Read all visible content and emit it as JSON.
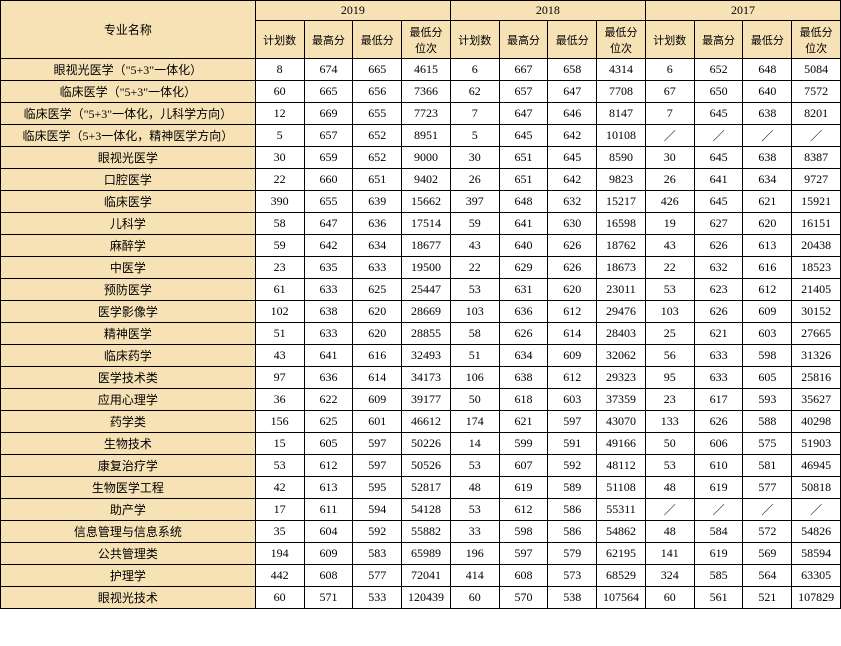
{
  "header": {
    "name_col": "专业名称",
    "years": [
      "2019",
      "2018",
      "2017"
    ],
    "sub": [
      "计划数",
      "最高分",
      "最低分",
      "最低分位次"
    ]
  },
  "rows": [
    {
      "name": "眼视光医学（\"5+3\"一体化）",
      "y2019": [
        "8",
        "674",
        "665",
        "4615"
      ],
      "y2018": [
        "6",
        "667",
        "658",
        "4314"
      ],
      "y2017": [
        "6",
        "652",
        "648",
        "5084"
      ]
    },
    {
      "name": "临床医学（\"5+3\"一体化）",
      "y2019": [
        "60",
        "665",
        "656",
        "7366"
      ],
      "y2018": [
        "62",
        "657",
        "647",
        "7708"
      ],
      "y2017": [
        "67",
        "650",
        "640",
        "7572"
      ]
    },
    {
      "name": "临床医学（\"5+3\"一体化，儿科学方向）",
      "y2019": [
        "12",
        "669",
        "655",
        "7723"
      ],
      "y2018": [
        "7",
        "647",
        "646",
        "8147"
      ],
      "y2017": [
        "7",
        "645",
        "638",
        "8201"
      ]
    },
    {
      "name": "临床医学（5+3一体化，精神医学方向）",
      "y2019": [
        "5",
        "657",
        "652",
        "8951"
      ],
      "y2018": [
        "5",
        "645",
        "642",
        "10108"
      ],
      "y2017": [
        "／",
        "／",
        "／",
        "／"
      ]
    },
    {
      "name": "眼视光医学",
      "y2019": [
        "30",
        "659",
        "652",
        "9000"
      ],
      "y2018": [
        "30",
        "651",
        "645",
        "8590"
      ],
      "y2017": [
        "30",
        "645",
        "638",
        "8387"
      ]
    },
    {
      "name": "口腔医学",
      "y2019": [
        "22",
        "660",
        "651",
        "9402"
      ],
      "y2018": [
        "26",
        "651",
        "642",
        "9823"
      ],
      "y2017": [
        "26",
        "641",
        "634",
        "9727"
      ]
    },
    {
      "name": "临床医学",
      "y2019": [
        "390",
        "655",
        "639",
        "15662"
      ],
      "y2018": [
        "397",
        "648",
        "632",
        "15217"
      ],
      "y2017": [
        "426",
        "645",
        "621",
        "15921"
      ]
    },
    {
      "name": "儿科学",
      "y2019": [
        "58",
        "647",
        "636",
        "17514"
      ],
      "y2018": [
        "59",
        "641",
        "630",
        "16598"
      ],
      "y2017": [
        "19",
        "627",
        "620",
        "16151"
      ]
    },
    {
      "name": "麻醉学",
      "y2019": [
        "59",
        "642",
        "634",
        "18677"
      ],
      "y2018": [
        "43",
        "640",
        "626",
        "18762"
      ],
      "y2017": [
        "43",
        "626",
        "613",
        "20438"
      ]
    },
    {
      "name": "中医学",
      "y2019": [
        "23",
        "635",
        "633",
        "19500"
      ],
      "y2018": [
        "22",
        "629",
        "626",
        "18673"
      ],
      "y2017": [
        "22",
        "632",
        "616",
        "18523"
      ]
    },
    {
      "name": "预防医学",
      "y2019": [
        "61",
        "633",
        "625",
        "25447"
      ],
      "y2018": [
        "53",
        "631",
        "620",
        "23011"
      ],
      "y2017": [
        "53",
        "623",
        "612",
        "21405"
      ]
    },
    {
      "name": "医学影像学",
      "y2019": [
        "102",
        "638",
        "620",
        "28669"
      ],
      "y2018": [
        "103",
        "636",
        "612",
        "29476"
      ],
      "y2017": [
        "103",
        "626",
        "609",
        "30152"
      ]
    },
    {
      "name": "精神医学",
      "y2019": [
        "51",
        "633",
        "620",
        "28855"
      ],
      "y2018": [
        "58",
        "626",
        "614",
        "28403"
      ],
      "y2017": [
        "25",
        "621",
        "603",
        "27665"
      ]
    },
    {
      "name": "临床药学",
      "y2019": [
        "43",
        "641",
        "616",
        "32493"
      ],
      "y2018": [
        "51",
        "634",
        "609",
        "32062"
      ],
      "y2017": [
        "56",
        "633",
        "598",
        "31326"
      ]
    },
    {
      "name": "医学技术类",
      "y2019": [
        "97",
        "636",
        "614",
        "34173"
      ],
      "y2018": [
        "106",
        "638",
        "612",
        "29323"
      ],
      "y2017": [
        "95",
        "633",
        "605",
        "25816"
      ]
    },
    {
      "name": "应用心理学",
      "y2019": [
        "36",
        "622",
        "609",
        "39177"
      ],
      "y2018": [
        "50",
        "618",
        "603",
        "37359"
      ],
      "y2017": [
        "23",
        "617",
        "593",
        "35627"
      ]
    },
    {
      "name": "药学类",
      "y2019": [
        "156",
        "625",
        "601",
        "46612"
      ],
      "y2018": [
        "174",
        "621",
        "597",
        "43070"
      ],
      "y2017": [
        "133",
        "626",
        "588",
        "40298"
      ]
    },
    {
      "name": "生物技术",
      "y2019": [
        "15",
        "605",
        "597",
        "50226"
      ],
      "y2018": [
        "14",
        "599",
        "591",
        "49166"
      ],
      "y2017": [
        "50",
        "606",
        "575",
        "51903"
      ]
    },
    {
      "name": "康复治疗学",
      "y2019": [
        "53",
        "612",
        "597",
        "50526"
      ],
      "y2018": [
        "53",
        "607",
        "592",
        "48112"
      ],
      "y2017": [
        "53",
        "610",
        "581",
        "46945"
      ]
    },
    {
      "name": "生物医学工程",
      "y2019": [
        "42",
        "613",
        "595",
        "52817"
      ],
      "y2018": [
        "48",
        "619",
        "589",
        "51108"
      ],
      "y2017": [
        "48",
        "619",
        "577",
        "50818"
      ]
    },
    {
      "name": "助产学",
      "y2019": [
        "17",
        "611",
        "594",
        "54128"
      ],
      "y2018": [
        "53",
        "612",
        "586",
        "55311"
      ],
      "y2017": [
        "／",
        "／",
        "／",
        "／"
      ]
    },
    {
      "name": "信息管理与信息系统",
      "y2019": [
        "35",
        "604",
        "592",
        "55882"
      ],
      "y2018": [
        "33",
        "598",
        "586",
        "54862"
      ],
      "y2017": [
        "48",
        "584",
        "572",
        "54826"
      ]
    },
    {
      "name": "公共管理类",
      "y2019": [
        "194",
        "609",
        "583",
        "65989"
      ],
      "y2018": [
        "196",
        "597",
        "579",
        "62195"
      ],
      "y2017": [
        "141",
        "619",
        "569",
        "58594"
      ]
    },
    {
      "name": "护理学",
      "y2019": [
        "442",
        "608",
        "577",
        "72041"
      ],
      "y2018": [
        "414",
        "608",
        "573",
        "68529"
      ],
      "y2017": [
        "324",
        "585",
        "564",
        "63305"
      ]
    },
    {
      "name": "眼视光技术",
      "y2019": [
        "60",
        "571",
        "533",
        "120439"
      ],
      "y2018": [
        "60",
        "570",
        "538",
        "107564"
      ],
      "y2017": [
        "60",
        "561",
        "521",
        "107829"
      ]
    }
  ]
}
